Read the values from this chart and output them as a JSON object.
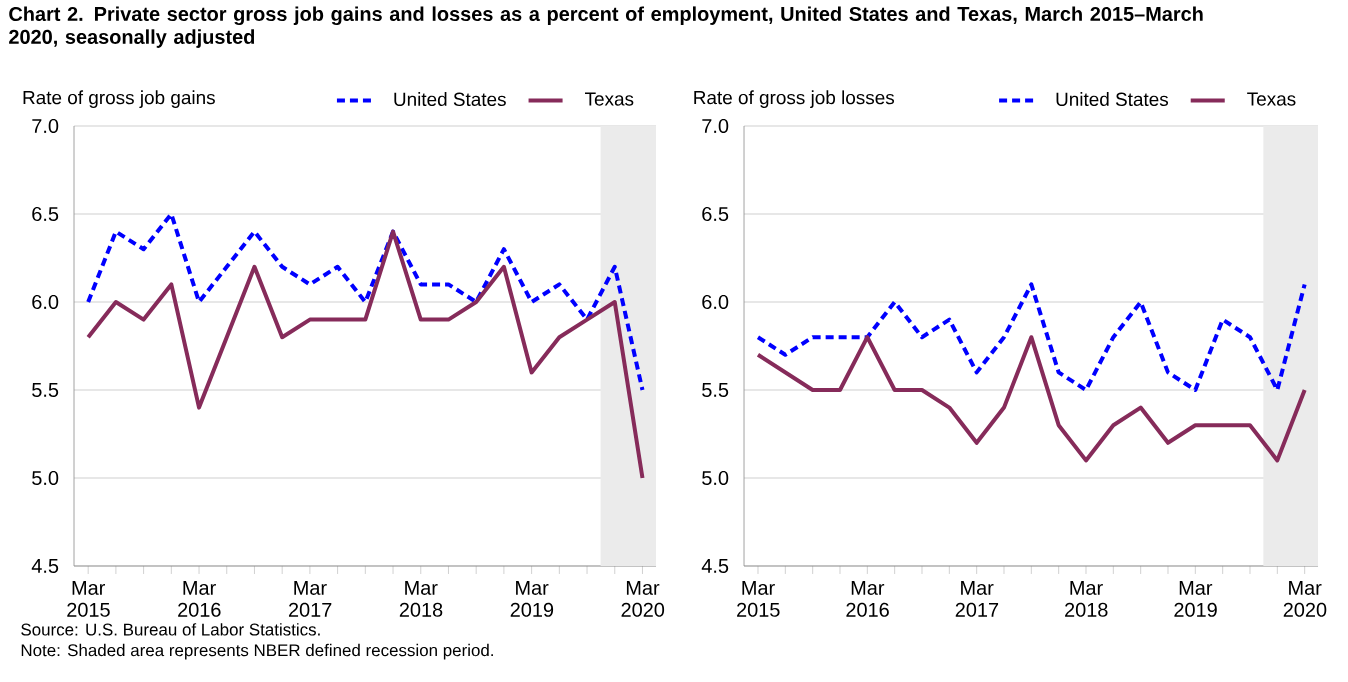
{
  "chart_data": [
    {
      "type": "line",
      "title": "Chart 2. Private sector gross job gains and losses as a percent of employment, United States and Texas, March 2015–March 2020, seasonally adjusted",
      "ylabel": "Rate of gross job gains",
      "annotations": [
        "Source: U.S. Bureau of Labor Statistics.",
        "Note: Shaded area represents NBER defined recession period."
      ],
      "x": [
        "2015-03",
        "2015-06",
        "2015-09",
        "2015-12",
        "2016-03",
        "2016-06",
        "2016-09",
        "2016-12",
        "2017-03",
        "2017-06",
        "2017-09",
        "2017-12",
        "2018-03",
        "2018-06",
        "2018-09",
        "2018-12",
        "2019-03",
        "2019-06",
        "2019-09",
        "2019-12",
        "2020-03"
      ],
      "series": [
        {
          "name": "United States",
          "color": "#0000ff",
          "line_style": "dashed",
          "values": [
            6.0,
            6.4,
            6.3,
            6.5,
            6.0,
            6.2,
            6.4,
            6.2,
            6.1,
            6.2,
            6.0,
            6.4,
            6.1,
            6.1,
            6.0,
            6.3,
            6.0,
            6.1,
            5.9,
            6.2,
            5.5
          ]
        },
        {
          "name": "Texas",
          "color": "#862b5a",
          "line_style": "solid",
          "values": [
            5.8,
            6.0,
            5.9,
            6.1,
            5.4,
            5.8,
            6.2,
            5.8,
            5.9,
            5.9,
            5.9,
            6.4,
            5.9,
            5.9,
            6.0,
            6.2,
            5.6,
            5.8,
            5.9,
            6.0,
            5.0
          ]
        }
      ],
      "xlim": [
        "2015-01-15",
        "2020-04-15"
      ],
      "xticks": [
        {
          "value": "2015-03",
          "label": "Mar 2015"
        },
        {
          "value": "2015-06",
          "label": null
        },
        {
          "value": "2015-09",
          "label": null
        },
        {
          "value": "2015-12",
          "label": null
        },
        {
          "value": "2016-03",
          "label": "Mar 2016"
        },
        {
          "value": "2016-06",
          "label": null
        },
        {
          "value": "2016-09",
          "label": null
        },
        {
          "value": "2016-12",
          "label": null
        },
        {
          "value": "2017-03",
          "label": "Mar 2017"
        },
        {
          "value": "2017-06",
          "label": null
        },
        {
          "value": "2017-09",
          "label": null
        },
        {
          "value": "2017-12",
          "label": null
        },
        {
          "value": "2018-03",
          "label": "Mar 2018"
        },
        {
          "value": "2018-06",
          "label": null
        },
        {
          "value": "2018-09",
          "label": null
        },
        {
          "value": "2018-12",
          "label": null
        },
        {
          "value": "2019-03",
          "label": "Mar 2019"
        },
        {
          "value": "2019-06",
          "label": null
        },
        {
          "value": "2019-09",
          "label": null
        },
        {
          "value": "2019-12",
          "label": null
        },
        {
          "value": "2020-03",
          "label": "Mar 2020"
        }
      ],
      "ylim": [
        4.5,
        7.0
      ],
      "yticks": [
        {
          "value": 4.5,
          "label": "4.5"
        },
        {
          "value": 5.0,
          "label": "5.0"
        },
        {
          "value": 5.5,
          "label": "5.5"
        },
        {
          "value": 6.0,
          "label": "6.0"
        },
        {
          "value": 6.5,
          "label": "6.5"
        },
        {
          "value": 7.0,
          "label": "7.0"
        }
      ],
      "bands": [
        {
          "axis": "x",
          "from": "2019-10-15",
          "to": "2020-04-15",
          "color": "#ebebeb"
        }
      ],
      "grid": "y",
      "legend": "top"
    },
    {
      "type": "line",
      "ylabel": "Rate of gross job losses",
      "x": [
        "2015-03",
        "2015-06",
        "2015-09",
        "2015-12",
        "2016-03",
        "2016-06",
        "2016-09",
        "2016-12",
        "2017-03",
        "2017-06",
        "2017-09",
        "2017-12",
        "2018-03",
        "2018-06",
        "2018-09",
        "2018-12",
        "2019-03",
        "2019-06",
        "2019-09",
        "2019-12",
        "2020-03"
      ],
      "series": [
        {
          "name": "United States",
          "color": "#0000ff",
          "line_style": "dashed",
          "values": [
            5.8,
            5.7,
            5.8,
            5.8,
            5.8,
            6.0,
            5.8,
            5.9,
            5.6,
            5.8,
            6.1,
            5.6,
            5.5,
            5.8,
            6.0,
            5.6,
            5.5,
            5.9,
            5.8,
            5.5,
            6.1
          ]
        },
        {
          "name": "Texas",
          "color": "#862b5a",
          "line_style": "solid",
          "values": [
            5.7,
            5.6,
            5.5,
            5.5,
            5.8,
            5.5,
            5.5,
            5.4,
            5.2,
            5.4,
            5.8,
            5.3,
            5.1,
            5.3,
            5.4,
            5.2,
            5.3,
            5.3,
            5.3,
            5.1,
            5.5
          ]
        }
      ],
      "xlim": [
        "2015-01-15",
        "2020-04-15"
      ],
      "xticks": [
        {
          "value": "2015-03",
          "label": "Mar 2015"
        },
        {
          "value": "2015-06",
          "label": null
        },
        {
          "value": "2015-09",
          "label": null
        },
        {
          "value": "2015-12",
          "label": null
        },
        {
          "value": "2016-03",
          "label": "Mar 2016"
        },
        {
          "value": "2016-06",
          "label": null
        },
        {
          "value": "2016-09",
          "label": null
        },
        {
          "value": "2016-12",
          "label": null
        },
        {
          "value": "2017-03",
          "label": "Mar 2017"
        },
        {
          "value": "2017-06",
          "label": null
        },
        {
          "value": "2017-09",
          "label": null
        },
        {
          "value": "2017-12",
          "label": null
        },
        {
          "value": "2018-03",
          "label": "Mar 2018"
        },
        {
          "value": "2018-06",
          "label": null
        },
        {
          "value": "2018-09",
          "label": null
        },
        {
          "value": "2018-12",
          "label": null
        },
        {
          "value": "2019-03",
          "label": "Mar 2019"
        },
        {
          "value": "2019-06",
          "label": null
        },
        {
          "value": "2019-09",
          "label": null
        },
        {
          "value": "2019-12",
          "label": null
        },
        {
          "value": "2020-03",
          "label": "Mar 2020"
        }
      ],
      "ylim": [
        4.5,
        7.0
      ],
      "yticks": [
        {
          "value": 4.5,
          "label": "4.5"
        },
        {
          "value": 5.0,
          "label": "5.0"
        },
        {
          "value": 5.5,
          "label": "5.5"
        },
        {
          "value": 6.0,
          "label": "6.0"
        },
        {
          "value": 6.5,
          "label": "6.5"
        },
        {
          "value": 7.0,
          "label": "7.0"
        }
      ],
      "bands": [
        {
          "axis": "x",
          "from": "2019-10-15",
          "to": "2020-04-15",
          "color": "#ebebeb"
        }
      ],
      "grid": "y",
      "legend": "top"
    }
  ]
}
